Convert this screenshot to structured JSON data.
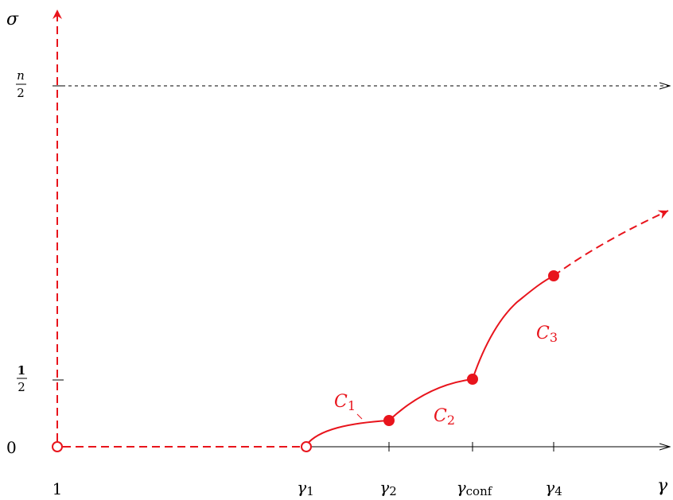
{
  "colors": {
    "curve": "#e8141c",
    "axis": "#000000"
  },
  "axes": {
    "y_label": "σ",
    "x_label": "γ",
    "y_ticks": {
      "zero": "0",
      "half_num": "1",
      "half_den": "2",
      "top_num": "n",
      "top_den": "2"
    },
    "x_ticks": {
      "start": "1",
      "g1_base": "γ",
      "g1_sub": "1",
      "g2_base": "γ",
      "g2_sub": "2",
      "gconf_base": "γ",
      "gconf_sub": "conf",
      "g4_base": "γ",
      "g4_sub": "4"
    }
  },
  "curves": {
    "c1_base": "C",
    "c1_sub": "1",
    "c2_base": "C",
    "c2_sub": "2",
    "c3_base": "C",
    "c3_sub": "3"
  }
}
